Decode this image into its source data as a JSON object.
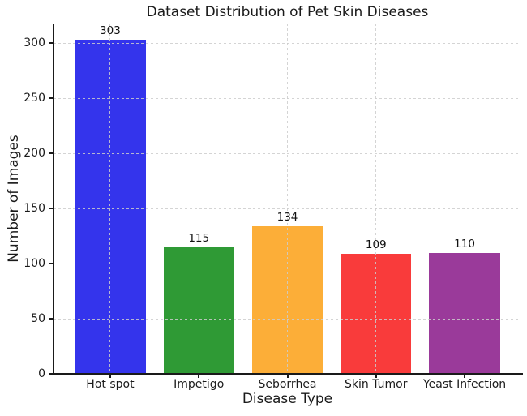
{
  "chart_data": {
    "type": "bar",
    "title": "Dataset Distribution of Pet Skin Diseases",
    "xlabel": "Disease Type",
    "ylabel": "Number of Images",
    "categories": [
      "Hot spot",
      "Impetigo",
      "Seborrhea",
      "Skin Tumor",
      "Yeast Infection"
    ],
    "values": [
      303,
      115,
      134,
      109,
      110
    ],
    "bar_colors": [
      "#3434ec",
      "#2f9a35",
      "#fcae38",
      "#f93b3b",
      "#9a3a9a"
    ],
    "value_labels": [
      "303",
      "115",
      "134",
      "109",
      "110"
    ],
    "yticks": [
      0,
      50,
      100,
      150,
      200,
      250,
      300
    ],
    "ylim": [
      0,
      318
    ],
    "xlim_units": [
      -0.64,
      4.64
    ],
    "bar_width_units": 0.8,
    "grid": true,
    "grid_axis": "both",
    "grid_style": "dashed",
    "grid_color": "#cccccc",
    "grid_over_bars": true,
    "spines": [
      "left",
      "bottom"
    ],
    "axis_color": "#1a1a1a",
    "legend": "none",
    "background": "#ffffff"
  }
}
